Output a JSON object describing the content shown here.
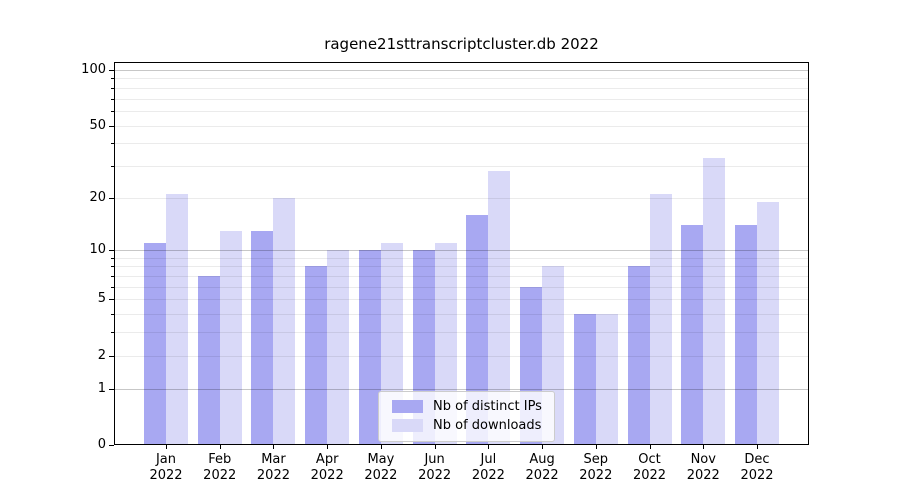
{
  "chart_data": {
    "type": "bar",
    "title": "ragene21sttranscriptcluster.db 2022",
    "categories": [
      "Jan",
      "Feb",
      "Mar",
      "Apr",
      "May",
      "Jun",
      "Jul",
      "Aug",
      "Sep",
      "Oct",
      "Nov",
      "Dec"
    ],
    "x_tick_second_line": "2022",
    "series": [
      {
        "name": "Nb of distinct IPs",
        "color": "#a8a8f2",
        "values": [
          11,
          7,
          13,
          8,
          10,
          10,
          16,
          6,
          4,
          8,
          14,
          14
        ]
      },
      {
        "name": "Nb of downloads",
        "color": "#d9d9f8",
        "values": [
          21,
          13,
          20,
          10,
          11,
          11,
          28,
          8,
          4,
          21,
          33,
          19
        ]
      }
    ],
    "y_axis": {
      "scale": "log10(1+x)",
      "tick_values": [
        100,
        50,
        20,
        10,
        5,
        2,
        1,
        0
      ],
      "tick_labels": [
        "100",
        "50",
        "20",
        "10",
        "5",
        "2",
        "1",
        "0"
      ],
      "range_max": 110
    },
    "grid": {
      "major_lines": [
        1,
        10,
        100
      ],
      "minor_lines": [
        2,
        3,
        4,
        5,
        6,
        7,
        8,
        9,
        20,
        30,
        40,
        50,
        60,
        70,
        80,
        90
      ]
    },
    "legend": {
      "position": "lower center",
      "entries": [
        "Nb of distinct IPs",
        "Nb of downloads"
      ]
    }
  }
}
